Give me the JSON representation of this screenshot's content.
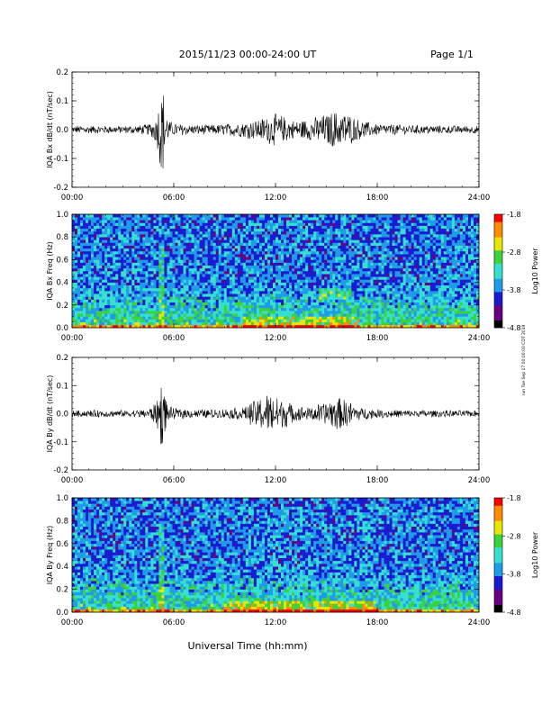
{
  "header": {
    "title": "2015/11/23  00:00-24:00 UT",
    "page": "Page 1/1"
  },
  "colors": {
    "trace": "#000000",
    "colormap": [
      "#000000",
      "#6a0080",
      "#1a1ad0",
      "#1f9be8",
      "#35e0d0",
      "#3cd23c",
      "#e6e600",
      "#ff8c00",
      "#ff0000"
    ]
  },
  "side_note": "run Tue Sep 17 00:00:00 CDT 2019",
  "xlabel": "Universal Time (hh:mm)",
  "chart_data": [
    {
      "type": "line",
      "ylabel": "IQA Bx dB/dt (nT/sec)",
      "xticks": [
        "00:00",
        "06:00",
        "12:00",
        "18:00",
        "24:00"
      ],
      "yticks": [
        "-0.2",
        "-0.1",
        "0.0",
        "0.1",
        "0.2"
      ],
      "ylim": [
        -0.2,
        0.2
      ],
      "x_unit": "hours UT",
      "series": [
        {
          "x": [
            0,
            1,
            2,
            3,
            4,
            4.5,
            5,
            5.2,
            5.35,
            5.5,
            5.7,
            6,
            7,
            8,
            9,
            10,
            11,
            11.5,
            12,
            12.5,
            13,
            14,
            15,
            15.5,
            16,
            16.5,
            17,
            18,
            20,
            22,
            24
          ],
          "envelope": [
            0.012,
            0.013,
            0.012,
            0.012,
            0.014,
            0.018,
            0.045,
            0.12,
            0.15,
            0.07,
            0.03,
            0.02,
            0.016,
            0.015,
            0.018,
            0.025,
            0.033,
            0.045,
            0.05,
            0.045,
            0.03,
            0.035,
            0.05,
            0.06,
            0.06,
            0.045,
            0.03,
            0.018,
            0.015,
            0.013,
            0.012
          ]
        }
      ]
    },
    {
      "type": "heatmap",
      "ylabel": "IQA Bx Freq (Hz)",
      "xticks": [
        "00:00",
        "06:00",
        "12:00",
        "18:00",
        "24:00"
      ],
      "yticks": [
        "0.0",
        "0.2",
        "0.4",
        "0.6",
        "0.8",
        "1.0"
      ],
      "ylim": [
        0,
        1.0
      ],
      "colorbar": {
        "label": "Log10 Power",
        "ticks": [
          "-1.8",
          "-2.8",
          "-3.8",
          "-4.8"
        ],
        "range": [
          -4.8,
          -1.8
        ]
      },
      "features": {
        "vertical_burst_hour": 5.3,
        "low_freq_enhancement_hours": [
          10,
          17
        ],
        "band_hz": [
          0.25,
          0.35
        ],
        "band_hours": [
          14.5,
          16.5
        ]
      }
    },
    {
      "type": "line",
      "ylabel": "IQA By dB/dt (nT/sec)",
      "xticks": [
        "00:00",
        "06:00",
        "12:00",
        "18:00",
        "24:00"
      ],
      "yticks": [
        "-0.2",
        "-0.1",
        "0.0",
        "0.1",
        "0.2"
      ],
      "ylim": [
        -0.2,
        0.2
      ],
      "x_unit": "hours UT",
      "series": [
        {
          "x": [
            0,
            1,
            2,
            3,
            4,
            4.5,
            5,
            5.2,
            5.35,
            5.5,
            5.7,
            6,
            7,
            8,
            9,
            10,
            10.5,
            11,
            11.5,
            12,
            12.5,
            13,
            14,
            15,
            15.5,
            16,
            16.5,
            17,
            18,
            20,
            22,
            24
          ],
          "envelope": [
            0.01,
            0.012,
            0.012,
            0.011,
            0.013,
            0.016,
            0.04,
            0.1,
            0.12,
            0.06,
            0.025,
            0.018,
            0.015,
            0.014,
            0.016,
            0.02,
            0.035,
            0.05,
            0.065,
            0.06,
            0.05,
            0.03,
            0.02,
            0.04,
            0.055,
            0.05,
            0.035,
            0.02,
            0.014,
            0.012,
            0.011,
            0.01
          ]
        }
      ]
    },
    {
      "type": "heatmap",
      "ylabel": "IQA By Freq (Hz)",
      "xticks": [
        "00:00",
        "06:00",
        "12:00",
        "18:00",
        "24:00"
      ],
      "yticks": [
        "0.0",
        "0.2",
        "0.4",
        "0.6",
        "0.8",
        "1.0"
      ],
      "ylim": [
        0,
        1.0
      ],
      "colorbar": {
        "label": "Log10 Power",
        "ticks": [
          "-1.8",
          "-2.8",
          "-3.8",
          "-4.8"
        ],
        "range": [
          -4.8,
          -1.8
        ]
      },
      "features": {
        "vertical_burst_hour": 5.3,
        "low_freq_enhancement_hours": [
          9,
          18
        ]
      }
    }
  ]
}
